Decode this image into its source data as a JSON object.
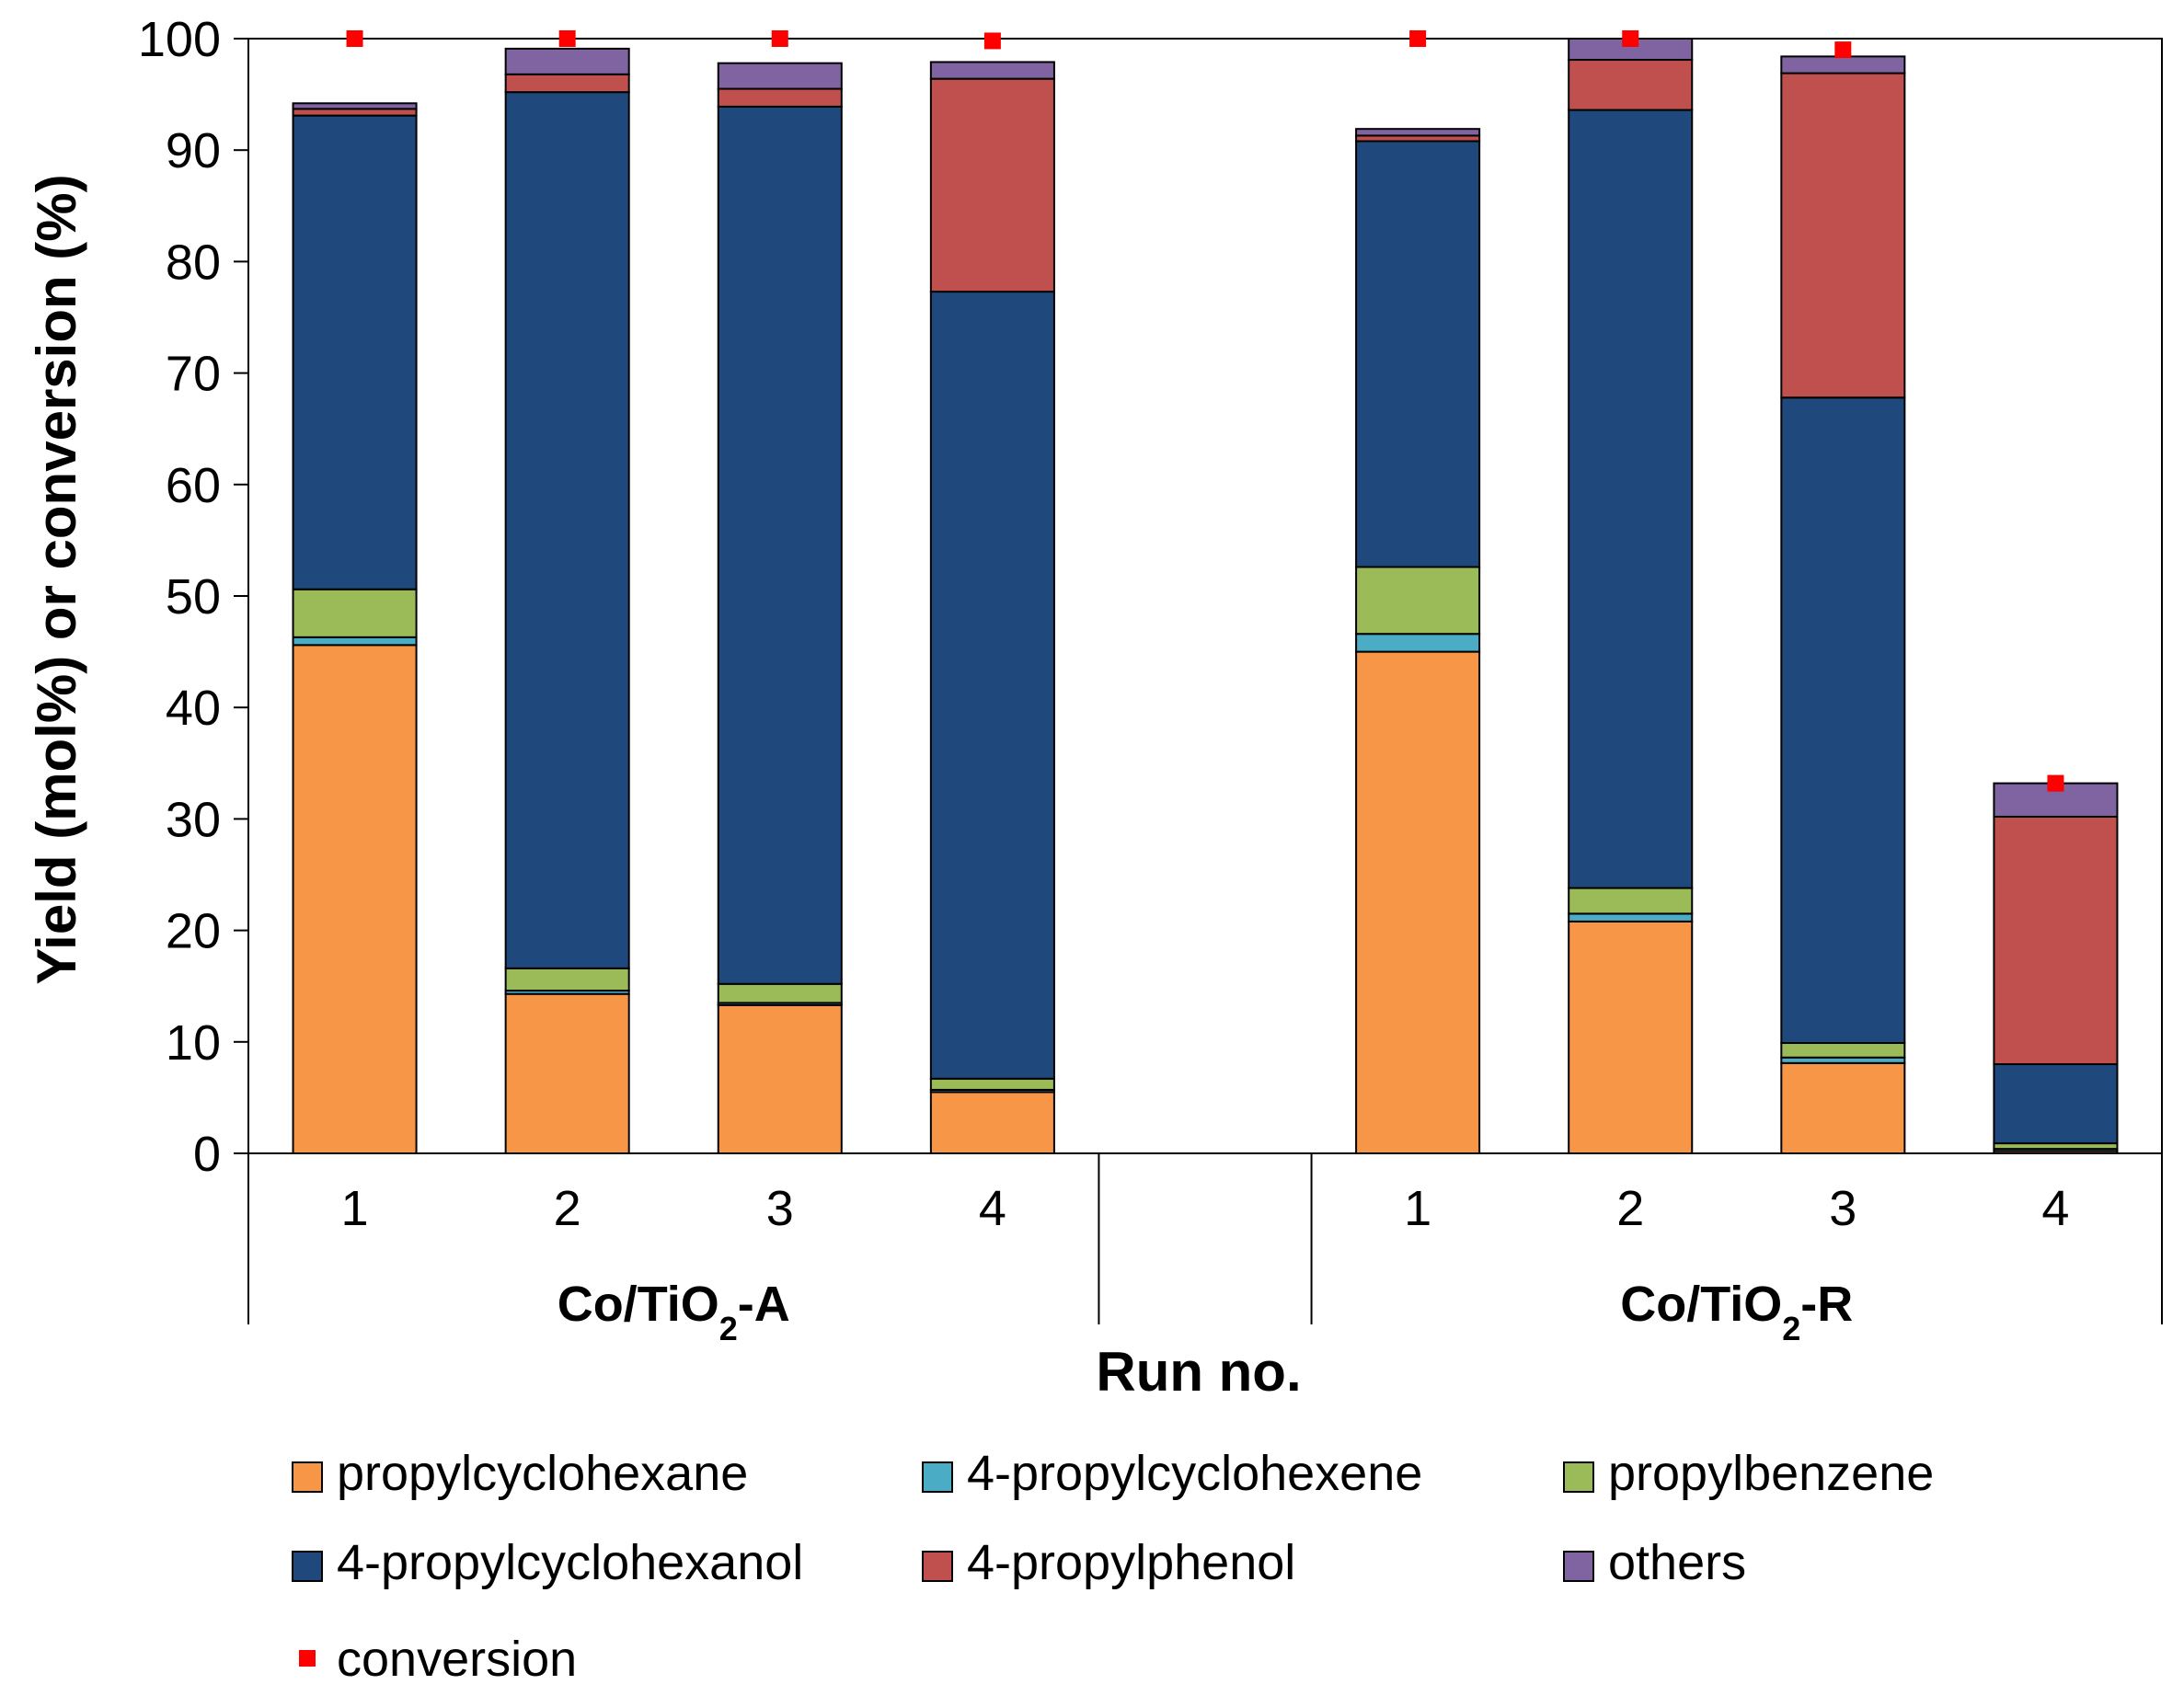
{
  "chart_data": {
    "type": "bar",
    "stacked": true,
    "title": "",
    "xlabel": "Run no.",
    "ylabel": "Yield (mol%) or conversion (%)",
    "ylim": [
      0,
      100
    ],
    "yticks": [
      "0",
      "10",
      "20",
      "30",
      "40",
      "50",
      "60",
      "70",
      "80",
      "90",
      "100"
    ],
    "groups": [
      {
        "name_main": "Co/TiO",
        "name_sub": "2",
        "name_suffix": "-A",
        "runs": [
          "1",
          "2",
          "3",
          "4"
        ]
      },
      {
        "name_main": "Co/TiO",
        "name_sub": "2",
        "name_suffix": "-R",
        "runs": [
          "1",
          "2",
          "3",
          "4"
        ]
      }
    ],
    "series": [
      {
        "name": "propylcyclohexane",
        "color": "#F79646",
        "values": [
          45.6,
          14.3,
          13.3,
          5.5,
          45.0,
          20.8,
          8.1,
          0.2
        ]
      },
      {
        "name": "4-propylcyclohexene",
        "color": "#4BACC6",
        "values": [
          0.7,
          0.3,
          0.2,
          0.2,
          1.6,
          0.7,
          0.5,
          0.2
        ]
      },
      {
        "name": "propylbenzene",
        "color": "#9BBB59",
        "values": [
          4.3,
          2.0,
          1.7,
          1.0,
          6.0,
          2.3,
          1.3,
          0.5
        ]
      },
      {
        "name": "4-propylcyclohexanol",
        "color": "#1F497D",
        "values": [
          42.5,
          78.6,
          78.7,
          70.6,
          38.2,
          69.8,
          57.9,
          7.1
        ]
      },
      {
        "name": "4-propylphenol",
        "color": "#C0504D",
        "values": [
          0.6,
          1.6,
          1.6,
          19.1,
          0.5,
          4.5,
          29.1,
          22.2
        ]
      },
      {
        "name": "others",
        "color": "#8064A2",
        "values": [
          0.5,
          2.3,
          2.3,
          1.5,
          0.6,
          1.9,
          1.5,
          3.0
        ]
      }
    ],
    "conversion": {
      "name": "conversion",
      "color": "#FF0000",
      "values": [
        100,
        100,
        100,
        99.8,
        100,
        100,
        99.0,
        33.2
      ]
    },
    "legend_position": "bottom"
  }
}
